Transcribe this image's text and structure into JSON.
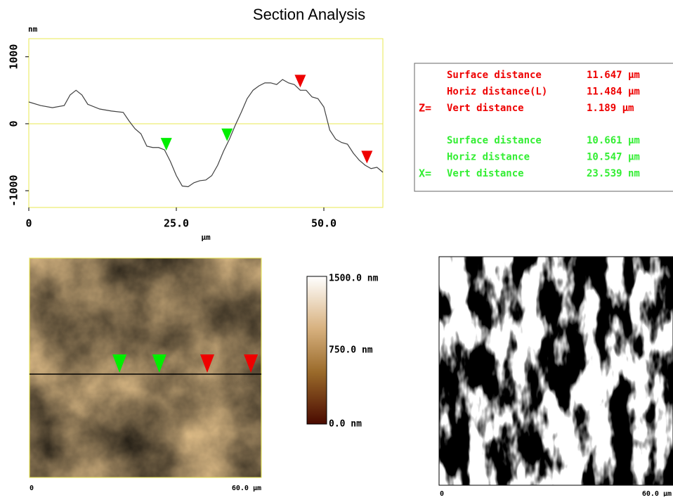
{
  "chart_data": {
    "type": "line",
    "title": "Section Analysis",
    "y_unit": "nm",
    "x_label": "µm",
    "x": [
      0,
      2,
      4,
      6,
      7,
      8,
      9,
      10,
      12,
      14,
      16,
      17,
      18,
      19,
      20,
      21,
      22,
      23,
      24,
      25,
      26,
      27,
      28,
      29,
      30,
      31,
      32,
      33,
      34,
      35,
      36,
      37,
      38,
      39,
      40,
      41,
      42,
      43,
      44,
      45,
      46,
      47,
      48,
      49,
      50,
      51,
      52,
      53,
      54,
      55,
      56,
      57,
      58,
      59,
      60
    ],
    "series": [
      {
        "color": "#404040",
        "values": [
          325,
          272,
          240,
          272,
          430,
          500,
          430,
          290,
          220,
          190,
          170,
          40,
          -75,
          -150,
          -335,
          -355,
          -355,
          -390,
          -565,
          -775,
          -930,
          -940,
          -880,
          -850,
          -840,
          -775,
          -620,
          -410,
          -230,
          -20,
          170,
          375,
          500,
          565,
          610,
          610,
          585,
          660,
          610,
          585,
          500,
          500,
          400,
          375,
          250,
          -95,
          -230,
          -280,
          -305,
          -440,
          -545,
          -620,
          -670,
          -650,
          -725
        ]
      }
    ],
    "cursors": [
      {
        "x": 23.3,
        "color": "#00ee00"
      },
      {
        "x": 33.6,
        "color": "#00ee00"
      },
      {
        "x": 46,
        "color": "#ee0000"
      },
      {
        "x": 57.3,
        "color": "#ee0000"
      }
    ],
    "xlim": [
      0,
      60
    ],
    "ylim": [
      -1250,
      1270
    ],
    "xticks": [
      0,
      {
        "value": 25,
        "label": "25.0"
      },
      {
        "value": 50,
        "label": "50.0"
      }
    ],
    "yticks": [
      1000,
      0,
      -1000
    ],
    "zero_line": true,
    "frame_color": "#e8e850"
  },
  "measurements": {
    "groups": [
      {
        "prefix": "Z=",
        "color": "#ee0000",
        "rows": [
          [
            "Surface distance",
            "11.647 µm"
          ],
          [
            "Horiz distance(L)",
            "11.484 µm"
          ],
          [
            "Vert distance",
            "1.189 µm"
          ]
        ]
      },
      {
        "prefix": "X=",
        "color": "#33ee33",
        "rows": [
          [
            "Surface distance",
            "10.661 µm"
          ],
          [
            "Horiz distance",
            "10.547 µm"
          ],
          [
            "Vert distance",
            "23.539 nm"
          ]
        ]
      }
    ]
  },
  "colorbar": {
    "labels": [
      "1500.0 nm",
      "750.0 nm",
      "0.0 nm"
    ]
  },
  "height_image": {
    "x_start": "0",
    "x_end": "60.0 µm"
  },
  "phase_image": {
    "x_start": "0",
    "x_end": "60.0 µm"
  }
}
